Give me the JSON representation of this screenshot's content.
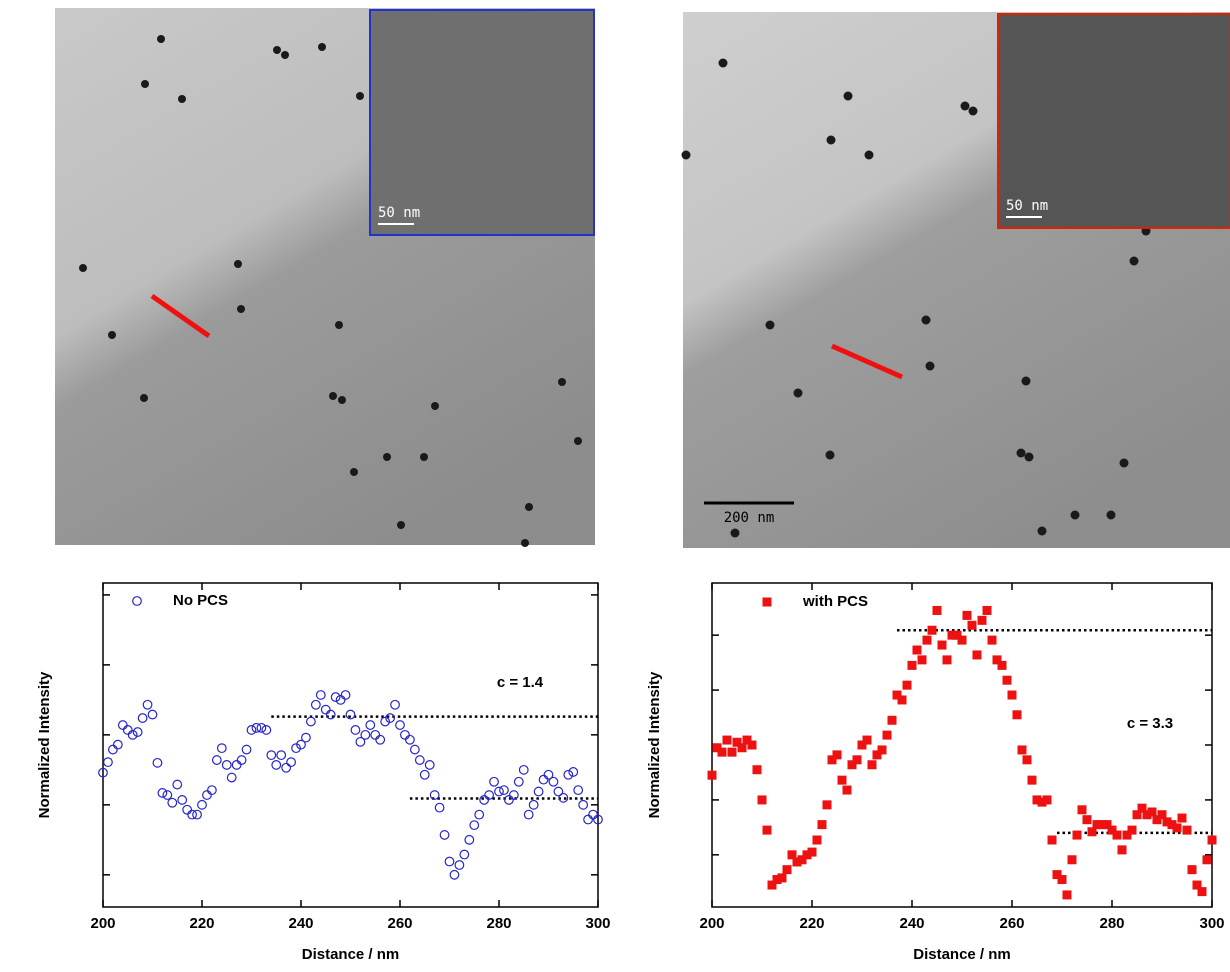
{
  "images": [
    {
      "inset_scale": "50 nm"
    },
    {
      "inset_scale": "50 nm",
      "scale_bar": "200 nm"
    }
  ],
  "chart_data": [
    {
      "type": "scatter",
      "xlabel": "Distance / nm",
      "ylabel": "Normalized Intensity",
      "x": [
        200,
        201,
        202,
        203,
        204,
        205,
        206,
        207,
        208,
        209,
        210,
        211,
        212,
        213,
        214,
        215,
        216,
        217,
        218,
        219,
        220,
        221,
        222,
        223,
        224,
        225,
        226,
        227,
        228,
        229,
        230,
        231,
        232,
        233,
        234,
        235,
        236,
        237,
        238,
        239,
        240,
        241,
        242,
        243,
        244,
        245,
        246,
        247,
        248,
        249,
        250,
        251,
        252,
        253,
        254,
        255,
        256,
        257,
        258,
        259,
        260,
        261,
        262,
        263,
        264,
        265,
        266,
        267,
        268,
        269,
        270,
        271,
        272,
        273,
        274,
        275,
        276,
        277,
        278,
        279,
        280,
        281,
        282,
        283,
        284,
        285,
        286,
        287,
        288,
        289,
        290,
        291,
        292,
        293,
        294,
        295,
        296,
        297,
        298,
        299,
        300
      ],
      "series": [
        {
          "name": "No PCS",
          "color": "#2525c8",
          "marker": "open-circle",
          "values": [
            2.46,
            2.61,
            2.79,
            2.86,
            3.14,
            3.07,
            3.0,
            3.04,
            3.24,
            3.43,
            3.29,
            2.6,
            2.17,
            2.14,
            2.03,
            2.29,
            2.07,
            1.93,
            1.86,
            1.86,
            2.0,
            2.14,
            2.21,
            2.64,
            2.81,
            2.57,
            2.39,
            2.57,
            2.64,
            2.79,
            3.07,
            3.1,
            3.1,
            3.07,
            2.71,
            2.57,
            2.71,
            2.53,
            2.61,
            2.81,
            2.86,
            2.96,
            3.19,
            3.43,
            3.57,
            3.36,
            3.29,
            3.54,
            3.5,
            3.57,
            3.29,
            3.07,
            2.9,
            3.0,
            3.14,
            3.0,
            2.93,
            3.19,
            3.24,
            3.43,
            3.14,
            3.0,
            2.93,
            2.79,
            2.64,
            2.43,
            2.57,
            2.14,
            1.96,
            1.57,
            1.19,
            1.0,
            1.14,
            1.29,
            1.5,
            1.71,
            1.86,
            2.07,
            2.14,
            2.33,
            2.19,
            2.21,
            2.07,
            2.14,
            2.33,
            2.5,
            1.86,
            2.0,
            2.19,
            2.36,
            2.43,
            2.33,
            2.19,
            2.1,
            2.43,
            2.47,
            2.21,
            2.0,
            1.79,
            1.86,
            1.79
          ]
        }
      ],
      "xlim": [
        200,
        300
      ],
      "xticks": [
        200,
        220,
        240,
        260,
        280,
        300
      ],
      "ylim": [
        0.54,
        5.17
      ],
      "yticks": [
        1,
        2,
        3,
        4,
        5
      ],
      "reference_lines": [
        {
          "y": 3.26,
          "x": [
            234,
            300
          ]
        },
        {
          "y": 2.09,
          "x": [
            262,
            300
          ]
        }
      ],
      "annotation": "c = 1.4"
    },
    {
      "type": "scatter",
      "xlabel": "Distance / nm",
      "ylabel": "Normalized Intensity",
      "x": [
        200,
        201,
        202,
        203,
        204,
        205,
        206,
        207,
        208,
        209,
        210,
        211,
        212,
        213,
        214,
        215,
        216,
        217,
        218,
        219,
        220,
        221,
        222,
        223,
        224,
        225,
        226,
        227,
        228,
        229,
        230,
        231,
        232,
        233,
        234,
        235,
        236,
        237,
        238,
        239,
        240,
        241,
        242,
        243,
        244,
        245,
        246,
        247,
        248,
        249,
        250,
        251,
        252,
        253,
        254,
        255,
        256,
        257,
        258,
        259,
        260,
        261,
        262,
        263,
        264,
        265,
        266,
        267,
        268,
        269,
        270,
        271,
        272,
        273,
        274,
        275,
        276,
        277,
        278,
        279,
        280,
        281,
        282,
        283,
        284,
        285,
        286,
        287,
        288,
        289,
        290,
        291,
        292,
        293,
        294,
        295,
        296,
        297,
        298,
        299,
        300
      ],
      "series": [
        {
          "name": "with PCS",
          "color": "#ee1111",
          "marker": "square",
          "values": [
            2.45,
            2.95,
            2.87,
            3.09,
            2.87,
            3.05,
            2.95,
            3.09,
            3.0,
            2.55,
            2.0,
            1.45,
            0.45,
            0.55,
            0.58,
            0.73,
            1.0,
            0.87,
            0.91,
            1.0,
            1.05,
            1.27,
            1.55,
            1.91,
            2.73,
            2.82,
            2.36,
            2.18,
            2.64,
            2.73,
            3.0,
            3.09,
            2.64,
            2.82,
            2.91,
            3.18,
            3.45,
            3.91,
            3.82,
            4.09,
            4.45,
            4.73,
            4.55,
            4.91,
            5.09,
            5.45,
            4.82,
            4.55,
            5.0,
            5.0,
            4.91,
            5.36,
            5.18,
            4.64,
            5.27,
            5.45,
            4.91,
            4.55,
            4.45,
            4.18,
            3.91,
            3.55,
            2.91,
            2.73,
            2.36,
            2.0,
            1.96,
            2.0,
            1.27,
            0.64,
            0.55,
            0.27,
            0.91,
            1.36,
            1.82,
            1.64,
            1.42,
            1.55,
            1.55,
            1.55,
            1.45,
            1.36,
            1.09,
            1.36,
            1.45,
            1.73,
            1.85,
            1.73,
            1.78,
            1.64,
            1.73,
            1.6,
            1.55,
            1.49,
            1.67,
            1.45,
            0.73,
            0.45,
            0.33,
            0.91,
            1.27
          ]
        }
      ],
      "xlim": [
        200,
        300
      ],
      "xticks": [
        200,
        220,
        240,
        260,
        280,
        300
      ],
      "ylim": [
        0.05,
        5.95
      ],
      "yticks": [
        1,
        2,
        3,
        4,
        5
      ],
      "reference_lines": [
        {
          "y": 5.09,
          "x": [
            237,
            300
          ]
        },
        {
          "y": 1.4,
          "x": [
            269,
            300
          ]
        }
      ],
      "annotation": "c = 3.3"
    }
  ]
}
